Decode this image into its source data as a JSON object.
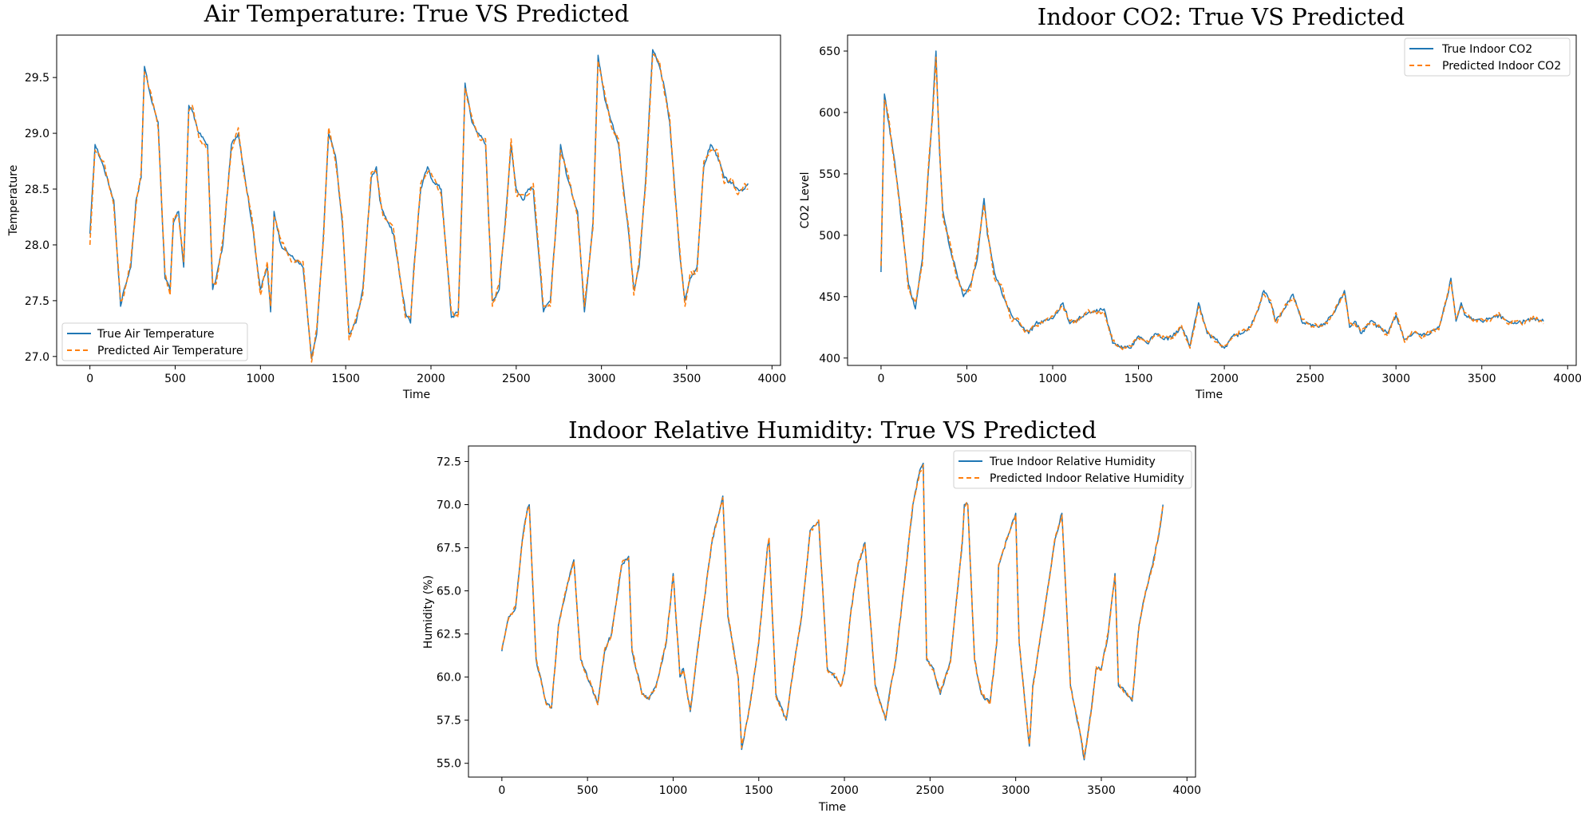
{
  "colors": {
    "true_series": "#1f77b4",
    "pred_series": "#ff7f0e"
  },
  "chart_data": [
    {
      "type": "line",
      "title": "Air Temperature: True VS Predicted",
      "xlabel": "Time",
      "ylabel": "Temperature",
      "xlim": [
        -195,
        4050
      ],
      "ylim": [
        26.92,
        29.88
      ],
      "xticks": [
        0,
        500,
        1000,
        1500,
        2000,
        2500,
        3000,
        3500,
        4000
      ],
      "yticks": [
        27.0,
        27.5,
        28.0,
        28.5,
        29.0,
        29.5
      ],
      "ytick_decimals": 1,
      "legend_position": "lower-left",
      "series": [
        {
          "name": "True Air Temperature",
          "style": "solid"
        },
        {
          "name": "Predicted Air Temperature",
          "style": "dashed"
        }
      ],
      "x": [
        0,
        30,
        80,
        140,
        180,
        200,
        240,
        270,
        300,
        320,
        360,
        400,
        440,
        470,
        490,
        520,
        550,
        580,
        600,
        640,
        690,
        720,
        740,
        780,
        830,
        870,
        900,
        950,
        1000,
        1040,
        1060,
        1080,
        1120,
        1180,
        1250,
        1300,
        1330,
        1370,
        1400,
        1440,
        1480,
        1520,
        1560,
        1600,
        1650,
        1680,
        1700,
        1720,
        1780,
        1850,
        1880,
        1900,
        1940,
        1980,
        2000,
        2060,
        2120,
        2160,
        2180,
        2200,
        2240,
        2280,
        2320,
        2360,
        2400,
        2440,
        2470,
        2500,
        2540,
        2570,
        2600,
        2660,
        2700,
        2740,
        2760,
        2800,
        2860,
        2900,
        2950,
        2980,
        3020,
        3060,
        3100,
        3130,
        3160,
        3190,
        3220,
        3260,
        3300,
        3340,
        3370,
        3400,
        3430,
        3460,
        3490,
        3520,
        3560,
        3600,
        3640,
        3680,
        3720,
        3760,
        3800,
        3840,
        3860
      ],
      "values": [
        28.1,
        28.9,
        28.7,
        28.4,
        27.45,
        27.6,
        27.8,
        28.4,
        28.6,
        29.6,
        29.3,
        29.1,
        27.7,
        27.6,
        28.2,
        28.3,
        27.8,
        29.25,
        29.2,
        29.0,
        28.9,
        27.6,
        27.7,
        28.0,
        28.9,
        29.0,
        28.7,
        28.2,
        27.6,
        27.8,
        27.4,
        28.3,
        28.0,
        27.9,
        27.8,
        26.98,
        27.2,
        28.1,
        29.0,
        28.8,
        28.2,
        27.2,
        27.3,
        27.6,
        28.6,
        28.7,
        28.4,
        28.3,
        28.1,
        27.4,
        27.3,
        27.8,
        28.5,
        28.7,
        28.6,
        28.5,
        27.35,
        27.4,
        28.3,
        29.45,
        29.1,
        29.0,
        28.9,
        27.5,
        27.6,
        28.3,
        28.9,
        28.5,
        28.4,
        28.5,
        28.5,
        27.4,
        27.5,
        28.3,
        28.9,
        28.6,
        28.3,
        27.4,
        28.2,
        29.7,
        29.3,
        29.1,
        28.9,
        28.5,
        28.1,
        27.6,
        27.8,
        28.6,
        29.75,
        29.6,
        29.4,
        29.1,
        28.5,
        27.9,
        27.5,
        27.7,
        27.8,
        28.7,
        28.9,
        28.8,
        28.6,
        28.55,
        28.5,
        28.5,
        28.55
      ],
      "pred_values": [
        28.0,
        28.85,
        28.75,
        28.35,
        27.5,
        27.55,
        27.85,
        28.35,
        28.65,
        29.55,
        29.35,
        29.05,
        27.75,
        27.55,
        28.25,
        28.25,
        27.85,
        29.2,
        29.25,
        28.95,
        28.85,
        27.65,
        27.65,
        28.05,
        28.85,
        29.05,
        28.65,
        28.25,
        27.55,
        27.85,
        27.45,
        28.25,
        28.05,
        27.85,
        27.85,
        26.95,
        27.25,
        28.05,
        29.05,
        28.75,
        28.25,
        27.15,
        27.35,
        27.55,
        28.65,
        28.65,
        28.45,
        28.25,
        28.15,
        27.35,
        27.35,
        27.75,
        28.55,
        28.65,
        28.65,
        28.45,
        27.4,
        27.35,
        28.35,
        29.4,
        29.15,
        28.95,
        28.95,
        27.45,
        27.65,
        28.25,
        28.95,
        28.45,
        28.45,
        28.45,
        28.55,
        27.45,
        27.45,
        28.35,
        28.85,
        28.65,
        28.25,
        27.45,
        28.15,
        29.65,
        29.35,
        29.05,
        28.95,
        28.45,
        28.15,
        27.55,
        27.85,
        28.55,
        29.7,
        29.65,
        29.35,
        29.15,
        28.45,
        27.95,
        27.45,
        27.75,
        27.75,
        28.75,
        28.85,
        28.85,
        28.55,
        28.6,
        28.45,
        28.55,
        28.5
      ]
    },
    {
      "type": "line",
      "title": "Indoor CO2: True VS Predicted",
      "xlabel": "Time",
      "ylabel": "CO2 Level",
      "xlim": [
        -195,
        4050
      ],
      "ylim": [
        394,
        663
      ],
      "xticks": [
        0,
        500,
        1000,
        1500,
        2000,
        2500,
        3000,
        3500,
        4000
      ],
      "yticks": [
        400,
        450,
        500,
        550,
        600,
        650
      ],
      "ytick_decimals": 0,
      "legend_position": "upper-right",
      "series": [
        {
          "name": "True Indoor CO2",
          "style": "solid"
        },
        {
          "name": "Predicted Indoor CO2",
          "style": "dashed"
        }
      ],
      "x": [
        0,
        20,
        40,
        80,
        120,
        160,
        200,
        240,
        280,
        300,
        320,
        340,
        360,
        400,
        440,
        480,
        520,
        560,
        600,
        620,
        660,
        700,
        760,
        800,
        830,
        860,
        900,
        1000,
        1060,
        1100,
        1150,
        1200,
        1300,
        1350,
        1400,
        1450,
        1500,
        1550,
        1600,
        1650,
        1700,
        1750,
        1800,
        1850,
        1900,
        1950,
        2000,
        2050,
        2100,
        2150,
        2200,
        2230,
        2270,
        2300,
        2350,
        2400,
        2450,
        2500,
        2550,
        2600,
        2650,
        2700,
        2730,
        2760,
        2800,
        2850,
        2900,
        2950,
        3000,
        3050,
        3100,
        3150,
        3200,
        3250,
        3300,
        3320,
        3350,
        3380,
        3400,
        3450,
        3500,
        3550,
        3600,
        3650,
        3700,
        3750,
        3800,
        3860
      ],
      "values": [
        470,
        615,
        595,
        560,
        510,
        460,
        440,
        480,
        560,
        600,
        650,
        570,
        520,
        490,
        470,
        450,
        460,
        480,
        530,
        500,
        470,
        455,
        435,
        430,
        425,
        420,
        428,
        432,
        445,
        428,
        432,
        436,
        440,
        412,
        410,
        408,
        418,
        412,
        420,
        415,
        418,
        425,
        410,
        445,
        420,
        415,
        408,
        418,
        420,
        425,
        440,
        455,
        445,
        430,
        440,
        452,
        430,
        428,
        425,
        430,
        440,
        455,
        425,
        430,
        420,
        430,
        425,
        420,
        435,
        415,
        420,
        418,
        420,
        425,
        450,
        465,
        430,
        445,
        435,
        432,
        430,
        432,
        435,
        430,
        428,
        430,
        432,
        430
      ],
      "pred_values": [
        475,
        610,
        600,
        555,
        515,
        455,
        445,
        475,
        565,
        595,
        645,
        575,
        515,
        495,
        465,
        455,
        455,
        485,
        525,
        505,
        465,
        460,
        430,
        432,
        423,
        422,
        426,
        434,
        442,
        430,
        430,
        438,
        437,
        414,
        408,
        410,
        416,
        414,
        418,
        417,
        416,
        427,
        408,
        442,
        422,
        413,
        410,
        416,
        422,
        423,
        442,
        452,
        447,
        428,
        442,
        449,
        432,
        426,
        427,
        428,
        442,
        452,
        427,
        428,
        422,
        428,
        427,
        418,
        437,
        413,
        422,
        416,
        422,
        423,
        452,
        462,
        432,
        442,
        437,
        430,
        432,
        430,
        437,
        428,
        430,
        428,
        434,
        428
      ]
    },
    {
      "type": "line",
      "title": "Indoor Relative Humidity: True VS Predicted",
      "xlabel": "Time",
      "ylabel": "Humidity (%)",
      "xlim": [
        -195,
        4050
      ],
      "ylim": [
        54.2,
        73.4
      ],
      "xticks": [
        0,
        500,
        1000,
        1500,
        2000,
        2500,
        3000,
        3500,
        4000
      ],
      "yticks": [
        55.0,
        57.5,
        60.0,
        62.5,
        65.0,
        67.5,
        70.0,
        72.5
      ],
      "ytick_decimals": 1,
      "legend_position": "upper-right",
      "series": [
        {
          "name": "True Indoor Relative Humidity",
          "style": "solid"
        },
        {
          "name": "Predicted Indoor Relative Humidity",
          "style": "dashed"
        }
      ],
      "x": [
        0,
        40,
        80,
        120,
        150,
        160,
        200,
        260,
        290,
        330,
        370,
        420,
        460,
        480,
        520,
        560,
        600,
        640,
        700,
        740,
        760,
        820,
        860,
        900,
        960,
        1000,
        1040,
        1060,
        1100,
        1160,
        1230,
        1290,
        1320,
        1380,
        1400,
        1450,
        1500,
        1550,
        1560,
        1600,
        1660,
        1710,
        1750,
        1800,
        1850,
        1900,
        1950,
        1980,
        2000,
        2040,
        2080,
        2120,
        2150,
        2180,
        2240,
        2270,
        2300,
        2350,
        2400,
        2440,
        2460,
        2480,
        2520,
        2560,
        2620,
        2690,
        2700,
        2720,
        2760,
        2800,
        2850,
        2890,
        2900,
        2950,
        3000,
        3020,
        3060,
        3080,
        3100,
        3140,
        3200,
        3230,
        3270,
        3290,
        3320,
        3380,
        3400,
        3440,
        3470,
        3500,
        3540,
        3580,
        3600,
        3640,
        3680,
        3720,
        3760,
        3800,
        3840,
        3860
      ],
      "values": [
        61.5,
        63.5,
        64.0,
        68.0,
        69.8,
        70.0,
        61.0,
        58.5,
        58.2,
        63.0,
        64.8,
        66.8,
        61.0,
        60.5,
        59.5,
        58.5,
        61.5,
        62.5,
        66.5,
        67.0,
        61.5,
        59.0,
        58.7,
        59.5,
        62.0,
        66.0,
        60.0,
        60.5,
        58.0,
        63.0,
        68.0,
        70.5,
        63.5,
        60.0,
        55.8,
        58.5,
        62.0,
        67.5,
        68.0,
        59.0,
        57.5,
        61.0,
        63.5,
        68.5,
        69.0,
        60.5,
        60.0,
        59.5,
        60.2,
        64.0,
        66.5,
        67.8,
        63.5,
        59.5,
        57.5,
        59.5,
        61.0,
        65.5,
        70.0,
        72.0,
        72.4,
        61.0,
        60.5,
        59.0,
        61.0,
        68.0,
        70.0,
        70.0,
        61.0,
        59.0,
        58.5,
        62.0,
        66.5,
        68.0,
        69.5,
        62.0,
        58.0,
        56.0,
        59.5,
        62.0,
        66.0,
        68.0,
        69.5,
        65.5,
        59.5,
        56.5,
        55.2,
        58.0,
        60.5,
        60.5,
        62.5,
        66.0,
        59.5,
        59.2,
        58.6,
        63.0,
        65.0,
        66.5,
        68.5,
        70.0
      ],
      "pred_values": [
        61.6,
        63.4,
        64.1,
        67.9,
        69.7,
        69.9,
        61.1,
        58.4,
        58.3,
        62.9,
        64.9,
        66.7,
        61.1,
        60.4,
        59.6,
        58.4,
        61.6,
        62.4,
        66.6,
        66.9,
        61.6,
        58.9,
        58.8,
        59.4,
        62.1,
        65.9,
        60.1,
        60.4,
        58.1,
        62.9,
        68.1,
        70.4,
        63.6,
        59.9,
        55.9,
        58.4,
        62.1,
        67.4,
        68.1,
        58.9,
        57.6,
        60.9,
        63.6,
        68.4,
        69.1,
        60.4,
        60.1,
        59.4,
        60.3,
        63.9,
        66.6,
        67.7,
        63.6,
        59.4,
        57.6,
        59.4,
        61.1,
        65.4,
        70.1,
        71.9,
        72.3,
        61.1,
        60.4,
        59.1,
        60.9,
        68.1,
        69.9,
        70.1,
        60.9,
        59.1,
        58.4,
        62.1,
        66.4,
        68.1,
        69.4,
        62.1,
        57.9,
        56.1,
        59.4,
        62.1,
        65.9,
        68.1,
        69.4,
        65.6,
        59.4,
        56.6,
        55.3,
        57.9,
        60.6,
        60.4,
        62.6,
        65.9,
        59.6,
        59.1,
        58.7,
        62.9,
        65.1,
        66.4,
        68.6,
        69.9
      ]
    }
  ]
}
